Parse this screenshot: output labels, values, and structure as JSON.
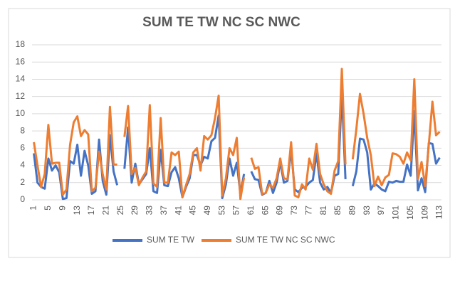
{
  "chart_data": {
    "type": "line",
    "title": "SUM TE TW NC SC NWC",
    "x": [
      1,
      2,
      3,
      4,
      5,
      6,
      7,
      8,
      9,
      10,
      11,
      12,
      13,
      14,
      15,
      16,
      17,
      18,
      19,
      20,
      21,
      22,
      23,
      24,
      25,
      26,
      27,
      28,
      29,
      30,
      31,
      32,
      33,
      34,
      35,
      36,
      37,
      38,
      39,
      40,
      41,
      42,
      43,
      44,
      45,
      46,
      47,
      48,
      49,
      50,
      51,
      52,
      53,
      54,
      55,
      56,
      57,
      58,
      59,
      60,
      61,
      62,
      63,
      64,
      65,
      66,
      67,
      68,
      69,
      70,
      71,
      72,
      73,
      74,
      75,
      76,
      77,
      78,
      79,
      80,
      81,
      82,
      83,
      84,
      85,
      86,
      87,
      88,
      89,
      90,
      91,
      92,
      93,
      94,
      95,
      96,
      97,
      98,
      99,
      100,
      101,
      102,
      103,
      104,
      105,
      106,
      107,
      108,
      109,
      110,
      111,
      112,
      113
    ],
    "series": [
      {
        "name": "SUM TE TW",
        "color": "#4472c4",
        "values": [
          5.4,
          2,
          1.5,
          1.3,
          4.8,
          3.4,
          4,
          3.2,
          0.1,
          0.2,
          4.5,
          4.2,
          6.4,
          2.8,
          5.7,
          4,
          0.7,
          1,
          7,
          2.2,
          0.6,
          7.5,
          3.3,
          1.7,
          null,
          3.6,
          8.4,
          2,
          4.2,
          1.8,
          2.4,
          3,
          6,
          1,
          0.8,
          5.8,
          1.7,
          1.6,
          3.2,
          3.8,
          2.5,
          0.3,
          1.5,
          2.5,
          5.2,
          5.2,
          4,
          5,
          4.8,
          6.8,
          7.2,
          9.8,
          0.2,
          1.8,
          4.8,
          2.8,
          4.3,
          0.7,
          3,
          null,
          3.3,
          2.4,
          2.3,
          0.6,
          0.8,
          2.2,
          0.8,
          2,
          4.4,
          2,
          2.2,
          5.8,
          1.2,
          0.9,
          1.4,
          1.5,
          2,
          2.3,
          5.4,
          2,
          1.2,
          1.5,
          0.8,
          2.8,
          3,
          12.4,
          2.4,
          null,
          1.6,
          3.3,
          7.1,
          7,
          5.5,
          1.2,
          1.9,
          1.6,
          1.2,
          1,
          2.1,
          2,
          2.2,
          2.1,
          2.1,
          4.1,
          2.8,
          10.3,
          1.1,
          2.5,
          0.9,
          6.6,
          6.5,
          4.2,
          4.9
        ]
      },
      {
        "name": "SUM TE TW NC SC NWC",
        "color": "#ed7d31",
        "values": [
          6.7,
          4,
          1.5,
          3,
          8.7,
          4.2,
          4.3,
          4.3,
          0.6,
          1.2,
          6.4,
          9,
          9.7,
          7.4,
          8.1,
          7.6,
          1,
          1.4,
          5.6,
          3,
          1.2,
          10.8,
          4.1,
          4.1,
          null,
          7.3,
          10.9,
          3,
          3.7,
          1.7,
          2.6,
          3.3,
          11,
          1.9,
          1.5,
          9.5,
          2,
          2,
          5.5,
          5.2,
          5.6,
          0.3,
          1.7,
          3,
          5.5,
          6,
          3.4,
          7.4,
          7,
          7.5,
          9.5,
          12.1,
          0.5,
          2.5,
          6,
          5.2,
          7.2,
          0.1,
          2.6,
          null,
          4.9,
          3.6,
          3.8,
          0.7,
          0.8,
          1.8,
          1.4,
          2.5,
          4.8,
          2.5,
          2.4,
          6.7,
          0.5,
          0.3,
          1.8,
          1.2,
          4.8,
          3.5,
          6.5,
          3,
          1.8,
          1,
          0.7,
          3.4,
          4.5,
          15.2,
          4.1,
          null,
          4.7,
          8.2,
          12.3,
          10,
          7.2,
          5.2,
          1.6,
          2.7,
          1.7,
          2.6,
          2.9,
          5.4,
          5.3,
          5,
          4.2,
          5.5,
          4.6,
          14,
          2.4,
          4.4,
          1.6,
          6.4,
          11.4,
          7.5,
          7.9
        ]
      }
    ],
    "xlim": [
      0.5,
      113.5
    ],
    "xticks": [
      1,
      5,
      9,
      13,
      17,
      21,
      25,
      29,
      33,
      37,
      41,
      45,
      49,
      53,
      57,
      61,
      65,
      69,
      73,
      77,
      81,
      85,
      89,
      93,
      97,
      101,
      105,
      109,
      113
    ],
    "ylim": [
      0,
      18
    ],
    "yticks": [
      0,
      2,
      4,
      6,
      8,
      10,
      12,
      14,
      16,
      18
    ],
    "grid": true,
    "legend": "bottom"
  }
}
